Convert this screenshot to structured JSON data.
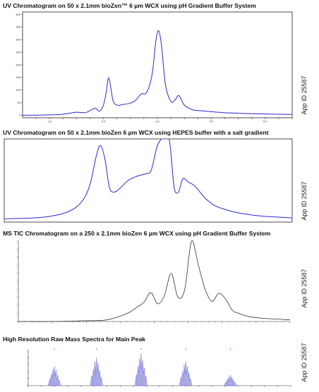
{
  "app_id": "App ID 25587",
  "colors": {
    "uv": "#2a2ad0",
    "tic": "#333333",
    "ms_fill": "#b8b8e8",
    "ms_line": "#5b5bd0",
    "ms_marker": "#d03030"
  },
  "chart_data": [
    {
      "type": "line",
      "title": "UV Chromatogram on 50 x 2.1mm bioZen™ 6 µm WCX using pH Gradient Buffer System",
      "xlabel": "",
      "ylabel": "",
      "xlim": [
        0,
        10
      ],
      "ylim": [
        -10,
        410
      ],
      "yticks": [
        0,
        50,
        100,
        150,
        200,
        250,
        300,
        350,
        400
      ],
      "xticks": [
        0.5,
        1.0,
        1.5,
        2.0,
        2.5,
        3.0,
        3.5,
        4.0,
        4.5,
        5.0,
        5.5,
        6.0,
        6.5,
        7.0,
        7.5,
        8.0,
        8.5,
        9.0,
        9.5,
        10.0
      ],
      "xtick_labels": [
        "",
        "1.0",
        "",
        "",
        "",
        "2.0",
        "",
        "",
        "",
        "3.0",
        "",
        "",
        "",
        "4.0",
        "",
        "",
        "",
        "5.0",
        "",
        ""
      ],
      "series": [
        {
          "x": [
            0,
            0.8,
            1.4,
            1.7,
            2.0,
            2.3,
            2.5,
            2.7,
            2.85,
            3.0,
            3.1,
            3.2,
            3.35,
            3.5,
            3.7,
            4.0,
            4.2,
            4.4,
            4.6,
            4.8,
            4.95,
            5.05,
            5.15,
            5.3,
            5.5,
            5.65,
            5.8,
            6.0,
            6.3,
            6.6,
            7.0,
            7.5,
            8.0,
            8.5,
            9.0,
            9.5,
            10.0
          ],
          "y": [
            0,
            1,
            3,
            7,
            12,
            10,
            18,
            28,
            16,
            40,
            90,
            148,
            60,
            40,
            42,
            48,
            60,
            85,
            90,
            160,
            300,
            335,
            280,
            120,
            55,
            60,
            78,
            40,
            22,
            18,
            14,
            10,
            8,
            6,
            5,
            4,
            3
          ]
        }
      ]
    },
    {
      "type": "line",
      "title": "UV Chromatogram on 50 x 2.1mm bioZen 6 µm WCX using HEPES buffer with a salt gradient",
      "xlabel": "",
      "ylabel": "",
      "xlim": [
        0,
        10
      ],
      "ylim": [
        0,
        100
      ],
      "series": [
        {
          "x": [
            0,
            1.0,
            1.6,
            2.1,
            2.5,
            2.8,
            3.0,
            3.2,
            3.35,
            3.5,
            3.65,
            3.8,
            4.0,
            4.3,
            4.6,
            4.9,
            5.1,
            5.3,
            5.45,
            5.6,
            5.75,
            5.9,
            6.05,
            6.2,
            6.4,
            6.6,
            6.8,
            7.0,
            7.3,
            7.6,
            8.0,
            8.5,
            9.0,
            9.5,
            10.0
          ],
          "y": [
            4,
            5,
            7,
            11,
            18,
            30,
            48,
            80,
            92,
            75,
            42,
            36,
            40,
            50,
            55,
            58,
            62,
            90,
            100,
            110,
            95,
            42,
            36,
            52,
            48,
            44,
            36,
            28,
            20,
            16,
            12,
            9,
            7,
            6,
            5
          ]
        }
      ]
    },
    {
      "type": "line",
      "title": "MS TIC Chromatogram on a 250 x 2.1mm bioZen 6 µm WCX using pH Gradient Buffer System",
      "xlabel": "",
      "ylabel": "",
      "xlim": [
        0,
        40
      ],
      "ylim": [
        0,
        100
      ],
      "series": [
        {
          "x": [
            0,
            5,
            10,
            13,
            16,
            17.5,
            18.5,
            19.5,
            20.5,
            21.5,
            22.5,
            23.5,
            24.5,
            25.5,
            26.5,
            27.5,
            28.5,
            29.5,
            30.5,
            31.5,
            32.5,
            34,
            36,
            38,
            40
          ],
          "y": [
            0,
            0,
            1,
            2,
            10,
            18,
            24,
            36,
            22,
            32,
            60,
            30,
            40,
            100,
            70,
            40,
            25,
            35,
            28,
            14,
            10,
            6,
            4,
            3,
            2
          ]
        }
      ]
    },
    {
      "type": "line",
      "title": "High Resolution Raw Mass Spectra for Main Peak",
      "xlabel": "",
      "ylabel": "",
      "xlim": [
        0,
        10
      ],
      "ylim": [
        0,
        100
      ],
      "peak_groups": [
        1.0,
        2.6,
        4.3,
        6.0,
        7.7
      ],
      "peak_heights": [
        55,
        80,
        92,
        70,
        30
      ]
    }
  ]
}
